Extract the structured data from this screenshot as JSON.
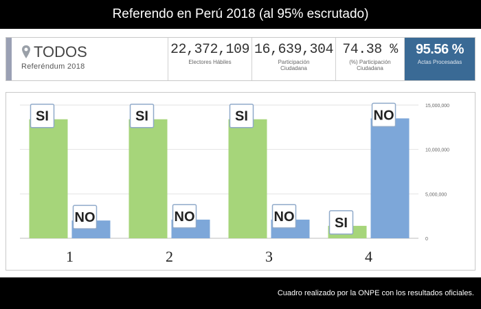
{
  "header": {
    "title": "Referendo en Perú 2018 (al 95% escrutado)"
  },
  "summary": {
    "scope_label": "TODOS",
    "scope_sub": "Referéndum 2018",
    "stats": [
      {
        "value": "22,372,109",
        "caption": "Electores Hábiles"
      },
      {
        "value": "16,639,304",
        "caption": "Participación Ciudadana"
      },
      {
        "value": "74.38 %",
        "caption": "(%) Participación Ciudadana"
      },
      {
        "value": "95.56 %",
        "caption": "Actas Procesadas"
      }
    ]
  },
  "chart_data": {
    "type": "bar",
    "categories": [
      "1",
      "2",
      "3",
      "4"
    ],
    "series": [
      {
        "name": "SI",
        "values": [
          13400000,
          13400000,
          13400000,
          1400000
        ],
        "color": "#a6d57a"
      },
      {
        "name": "NO",
        "values": [
          2000000,
          2100000,
          2100000,
          13500000
        ],
        "color": "#7da7d9"
      }
    ],
    "ylim": [
      0,
      15000000
    ],
    "yticks": [
      0,
      5000000,
      10000000,
      15000000
    ],
    "ytick_labels": [
      "0",
      "5,000,000",
      "10,000,000",
      "15,000,000"
    ],
    "grid": true
  },
  "footer": {
    "text": "Cuadro realizado por la ONPE con los resultados oficiales."
  }
}
